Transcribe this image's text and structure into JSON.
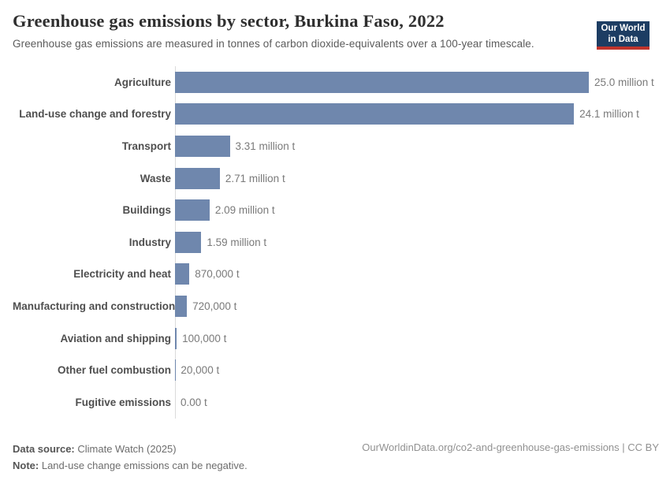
{
  "header": {
    "title": "Greenhouse gas emissions by sector, Burkina Faso, 2022",
    "subtitle": "Greenhouse gas emissions are measured in tonnes of carbon dioxide-equivalents over a 100-year timescale.",
    "logo": {
      "line1": "Our World",
      "line2": "in Data"
    },
    "logo_colors": {
      "background": "#1d3d63",
      "underline": "#c0342c"
    }
  },
  "chart_data": {
    "type": "bar",
    "orientation": "horizontal",
    "title": "Greenhouse gas emissions by sector, Burkina Faso, 2022",
    "categories": [
      "Agriculture",
      "Land-use change and forestry",
      "Transport",
      "Waste",
      "Buildings",
      "Industry",
      "Electricity and heat",
      "Manufacturing and construction",
      "Aviation and shipping",
      "Other fuel combustion",
      "Fugitive emissions"
    ],
    "values": [
      25000000,
      24100000,
      3310000,
      2710000,
      2090000,
      1590000,
      870000,
      720000,
      100000,
      20000,
      0
    ],
    "value_labels": [
      "25.0 million t",
      "24.1 million t",
      "3.31 million t",
      "2.71 million t",
      "2.09 million t",
      "1.59 million t",
      "870,000 t",
      "720,000 t",
      "100,000 t",
      "20,000 t",
      "0.00 t"
    ],
    "unit": "t",
    "xlim": [
      0,
      25000000
    ],
    "grid": false,
    "legend": "none",
    "bar_color": "#6f87ad",
    "axis_line_color": "#dbdbdb"
  },
  "footer": {
    "source_label": "Data source:",
    "source_text": "Climate Watch (2025)",
    "note_label": "Note:",
    "note_text": "Land-use change emissions can be negative.",
    "citation": "OurWorldinData.org/co2-and-greenhouse-gas-emissions | CC BY"
  }
}
